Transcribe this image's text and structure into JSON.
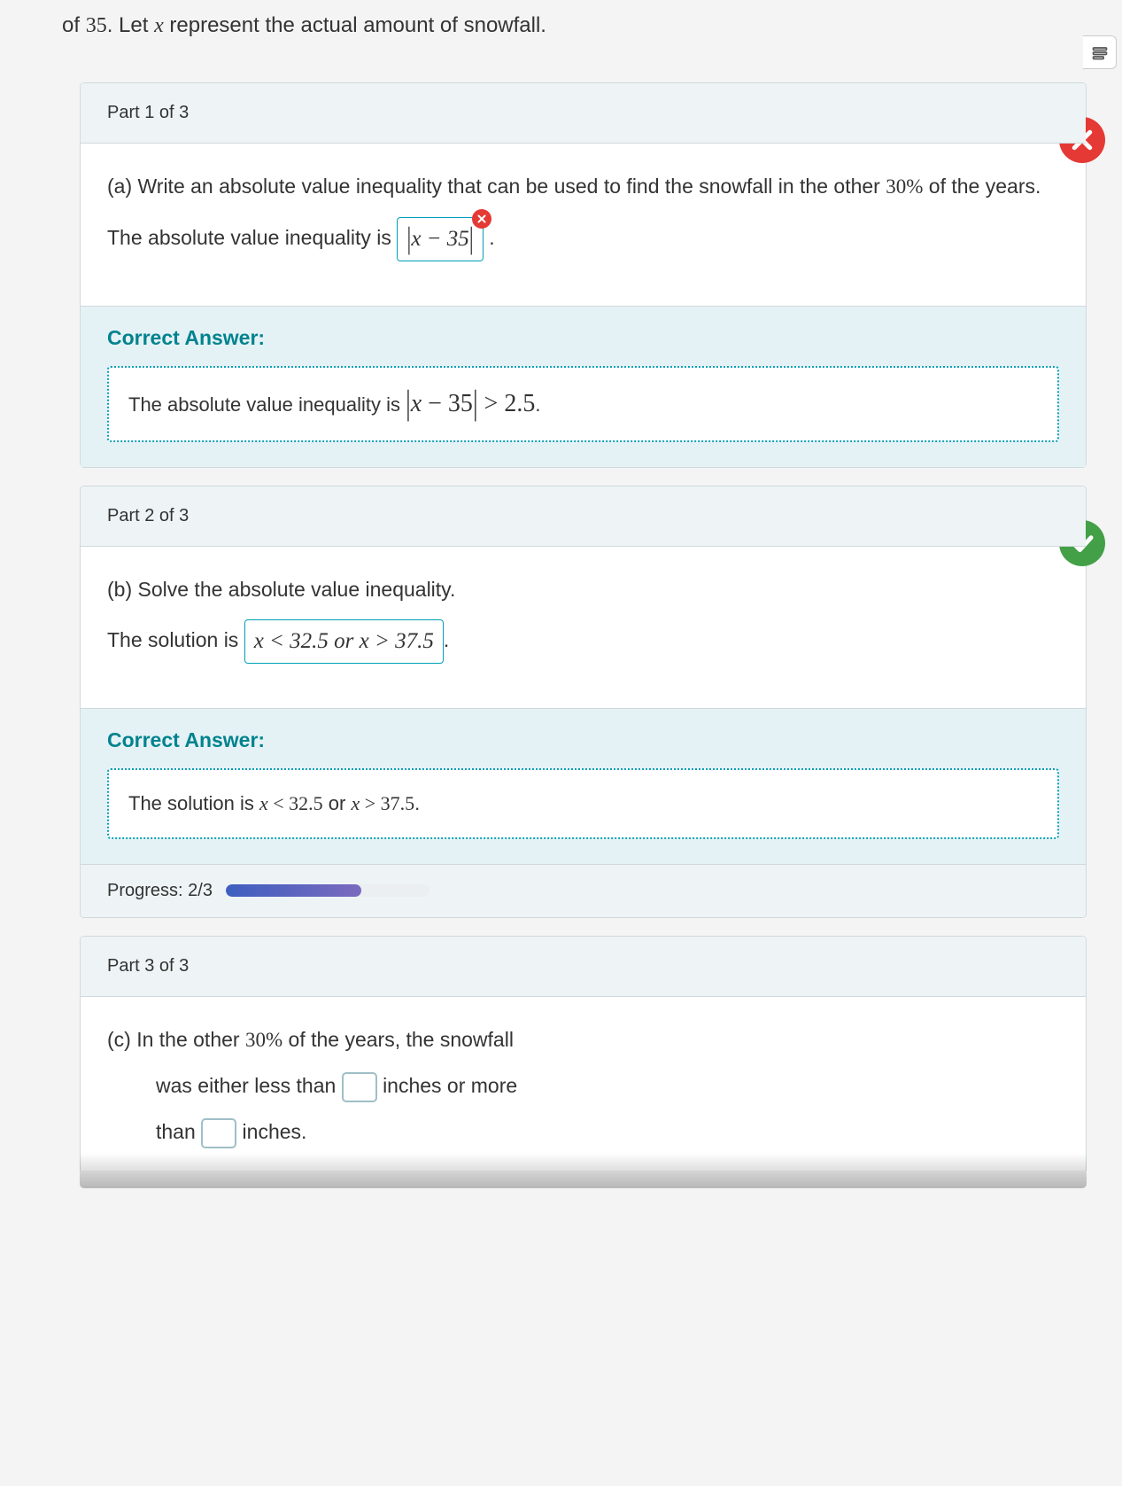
{
  "intro": {
    "prefix": "of ",
    "number": "35",
    "middle": ". Let ",
    "variable": "x",
    "suffix": "  represent the actual amount of snowfall."
  },
  "part1": {
    "header": "Part 1 of 3",
    "q_prefix": "(a)  Write an absolute value inequality that can be used to find the snowfall in the other ",
    "q_percent": "30%",
    "q_suffix": " of the years.",
    "stem": "The absolute value inequality is ",
    "user_answer_inner": "x − 35",
    "period": ".",
    "correct_label": "Correct Answer:",
    "correct_stem": "The absolute value inequality is ",
    "correct_expr_var": "x",
    "correct_expr_minus": " − 35",
    "correct_expr_rel": " > 2.5",
    "correct_period": "."
  },
  "part2": {
    "header": "Part 2 of 3",
    "q": "(b)  Solve the absolute value inequality.",
    "stem": "The solution is ",
    "user_answer": "x < 32.5 or x > 37.5",
    "period": ".",
    "correct_label": "Correct Answer:",
    "correct_text_pre": "The solution is ",
    "correct_expr1_var": "x",
    "correct_expr1_rel": " < 32.5",
    "correct_or": " or ",
    "correct_expr2_var": "x",
    "correct_expr2_rel": " > 37.5",
    "correct_period": "."
  },
  "progress": {
    "label": "Progress: 2/3",
    "percent": 66.6
  },
  "part3": {
    "header": "Part 3 of 3",
    "line1_pre": "(c)  In the other ",
    "line1_percent": "30%",
    "line1_post": " of the years, the snowfall",
    "line2_pre": "was either less than ",
    "line2_post": " inches or more",
    "line3_pre": "than ",
    "line3_post": " inches."
  },
  "colors": {
    "incorrect": "#e53935",
    "correct": "#43a047",
    "teal": "#009fb7",
    "header_bg": "#eef4f5"
  }
}
